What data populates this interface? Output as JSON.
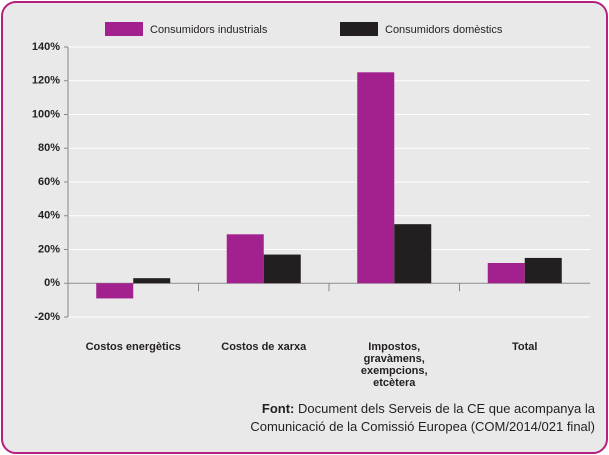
{
  "chart_data": {
    "type": "bar",
    "categories": [
      "Costos energètics",
      "Costos de xarxa",
      "Impostos, gravàmens, exempcions, etcètera",
      "Total"
    ],
    "series": [
      {
        "name": "Consumidors industrials",
        "color": "#a3218e",
        "values": [
          -9,
          29,
          125,
          12
        ]
      },
      {
        "name": "Consumidors domèstics",
        "color": "#231f20",
        "values": [
          3,
          17,
          35,
          15
        ]
      }
    ],
    "ylim": [
      -20,
      140
    ],
    "yticks": [
      {
        "value": -20,
        "label": "-20%"
      },
      {
        "value": 0,
        "label": "0%"
      },
      {
        "value": 20,
        "label": "20%"
      },
      {
        "value": 40,
        "label": "40%"
      },
      {
        "value": 60,
        "label": "60%"
      },
      {
        "value": 80,
        "label": "80%"
      },
      {
        "value": 100,
        "label": "100%"
      },
      {
        "value": 120,
        "label": "120%"
      },
      {
        "value": 140,
        "label": "140%"
      }
    ],
    "grid": true,
    "source_label": "Font:",
    "source_text": "Document dels Serveis de la CE que acompanya la Comunicació de la Comissió Europea (COM/2014/021 final)"
  }
}
